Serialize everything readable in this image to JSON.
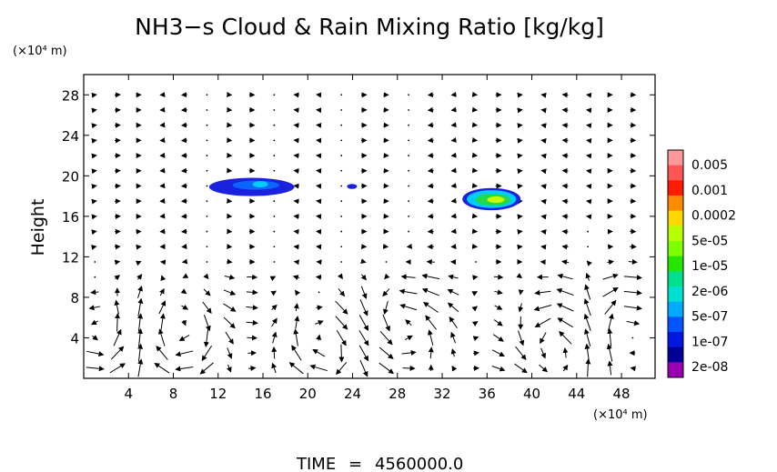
{
  "chart_data": {
    "type": "heatmap",
    "title": "NH3−s Cloud & Rain Mixing Ratio [kg/kg]",
    "xlabel": "",
    "ylabel": "Height",
    "x_unit": "(×10⁴ m)",
    "y_unit": "(×10⁴ m)",
    "xlim": [
      0,
      51
    ],
    "ylim": [
      0,
      30
    ],
    "x_ticks": [
      4,
      8,
      12,
      16,
      20,
      24,
      28,
      32,
      36,
      40,
      44,
      48
    ],
    "y_ticks": [
      4,
      8,
      12,
      16,
      20,
      24,
      28
    ],
    "legend": {
      "placement": "right",
      "labels": [
        "0.005",
        "0.001",
        "0.0002",
        "5e-05",
        "1e-05",
        "2e-06",
        "5e-07",
        "1e-07",
        "2e-08"
      ],
      "colors": [
        "#ff9999",
        "#ff5555",
        "#ff1a00",
        "#ff8c00",
        "#ffd800",
        "#b6ff00",
        "#7cff00",
        "#26e600",
        "#00e08c",
        "#00e0d0",
        "#00aaff",
        "#0055ff",
        "#0018e0",
        "#000099",
        "#9900b0"
      ]
    },
    "regions": [
      {
        "x": [
          11.2,
          18.8
        ],
        "y": [
          18.0,
          19.8
        ],
        "max_level": "5e-07"
      },
      {
        "x": [
          23.5,
          24.4
        ],
        "y": [
          18.7,
          19.2
        ],
        "max_level": "1e-07"
      },
      {
        "x": [
          33.8,
          39.0
        ],
        "y": [
          16.6,
          18.8
        ],
        "max_level": "5e-05"
      }
    ],
    "vector_field": "wind"
  },
  "footer": {
    "time_label": "TIME",
    "time_value": "4560000.0"
  }
}
